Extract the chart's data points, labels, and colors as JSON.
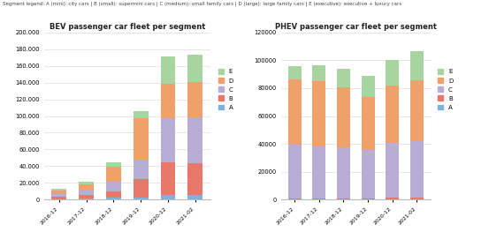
{
  "bev_title": "BEV passenger car fleet per segment",
  "phev_title": "PHEV passenger car fleet per segment",
  "legend_text": "Segment legend: A (mini): city cars | B (small): supermini cars | C (medium): small family cars | D (large): large family cars | E (executive): executive + luxury cars",
  "categories": [
    "2016-12",
    "2017-12",
    "2018-12",
    "2019-12",
    "2020-12",
    "2021-02"
  ],
  "segment_labels": [
    "A",
    "B",
    "C",
    "D",
    "E"
  ],
  "segment_colors": [
    "#7db3d8",
    "#e8786a",
    "#b8add4",
    "#f0a06a",
    "#a8d4a0"
  ],
  "bev_A": [
    700,
    1000,
    1800,
    2500,
    5000,
    5500
  ],
  "bev_B": [
    3000,
    4500,
    7500,
    22000,
    40000,
    38000
  ],
  "bev_C": [
    2500,
    5000,
    12000,
    23000,
    52000,
    55000
  ],
  "bev_D": [
    5000,
    8000,
    18000,
    50000,
    42000,
    42000
  ],
  "bev_E": [
    2000,
    3000,
    5000,
    8000,
    32000,
    33000
  ],
  "phev_A": [
    200,
    200,
    200,
    200,
    300,
    300
  ],
  "phev_B": [
    500,
    500,
    500,
    500,
    800,
    1200
  ],
  "phev_C": [
    38500,
    37500,
    36500,
    35000,
    39500,
    40500
  ],
  "phev_D": [
    47000,
    47000,
    43500,
    38000,
    41500,
    43500
  ],
  "phev_E": [
    9500,
    11500,
    13000,
    15000,
    18000,
    21000
  ],
  "bev_ylim": [
    0,
    200000
  ],
  "bev_yticks": [
    0,
    20000,
    40000,
    60000,
    80000,
    100000,
    120000,
    140000,
    160000,
    180000,
    200000
  ],
  "phev_ylim": [
    0,
    120000
  ],
  "phev_yticks": [
    0,
    20000,
    40000,
    60000,
    80000,
    100000,
    120000
  ],
  "fig_bg": "#ffffff",
  "bar_width": 0.55
}
